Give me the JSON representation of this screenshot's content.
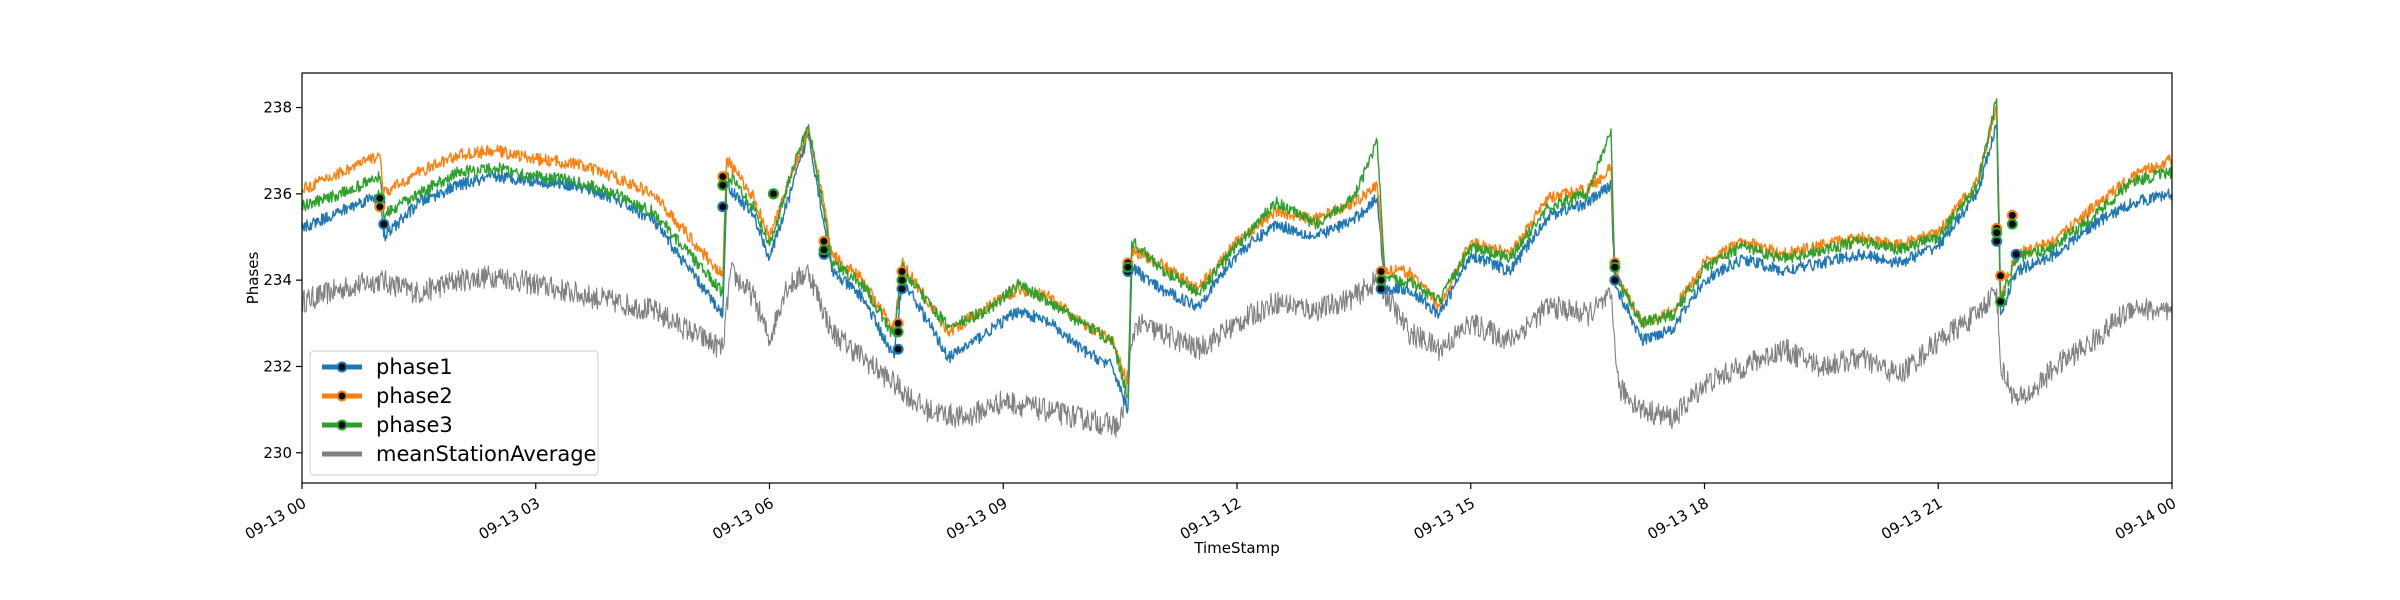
{
  "chart_data": {
    "type": "line",
    "title": "",
    "xlabel": "TimeStamp",
    "ylabel": "Phases",
    "xlim": [
      "09-13 00:00",
      "09-14 00:00"
    ],
    "ylim": [
      229.3,
      238.8
    ],
    "x_unit": "hour",
    "x_tick_values": [
      0,
      3,
      6,
      9,
      12,
      15,
      18,
      21,
      24
    ],
    "x_tick_labels": [
      "09-13 00",
      "09-13 03",
      "09-13 06",
      "09-13 09",
      "09-13 12",
      "09-13 15",
      "09-13 18",
      "09-13 21",
      "09-14 00"
    ],
    "y_ticks": [
      230,
      232,
      234,
      236,
      238
    ],
    "grid": false,
    "legend_position": "lower-left",
    "series": [
      {
        "name": "phase1",
        "color": "#1f77b4",
        "x": [
          0,
          0.5,
          1.0,
          1.05,
          1.5,
          2.0,
          2.5,
          3.0,
          3.5,
          4.0,
          4.5,
          5.4,
          5.45,
          5.8,
          6.0,
          6.3,
          6.5,
          6.7,
          6.8,
          7.2,
          7.6,
          7.7,
          7.85,
          8.3,
          8.8,
          9.2,
          9.6,
          10.0,
          10.4,
          10.6,
          10.65,
          11.0,
          11.5,
          12.0,
          12.5,
          13.0,
          13.5,
          13.8,
          13.9,
          14.2,
          14.6,
          15.0,
          15.5,
          16.0,
          16.5,
          16.8,
          16.85,
          17.2,
          17.6,
          18.0,
          18.5,
          19.0,
          19.5,
          20.0,
          20.5,
          21.0,
          21.5,
          21.75,
          21.8,
          22.0,
          22.5,
          23.0,
          23.5,
          24.0
        ],
        "y": [
          235.2,
          235.6,
          236.0,
          235.0,
          235.8,
          236.2,
          236.4,
          236.3,
          236.2,
          235.9,
          235.4,
          233.2,
          236.2,
          235.5,
          234.5,
          236.2,
          237.4,
          235.3,
          234.2,
          233.6,
          232.2,
          234.0,
          233.6,
          232.2,
          232.8,
          233.3,
          233.0,
          232.4,
          232.0,
          231.0,
          234.3,
          233.8,
          233.4,
          234.6,
          235.3,
          235.0,
          235.4,
          235.9,
          233.8,
          233.8,
          233.2,
          234.6,
          234.2,
          235.5,
          235.8,
          236.2,
          233.9,
          232.6,
          232.9,
          234.0,
          234.5,
          234.2,
          234.4,
          234.6,
          234.4,
          234.8,
          236.0,
          237.6,
          233.2,
          234.2,
          234.6,
          235.3,
          235.8,
          236.0
        ]
      },
      {
        "name": "phase2",
        "color": "#ff7f0e",
        "x": [
          0,
          0.5,
          1.0,
          1.05,
          1.5,
          2.0,
          2.5,
          3.0,
          3.5,
          4.0,
          4.5,
          5.4,
          5.45,
          5.8,
          6.0,
          6.3,
          6.5,
          6.7,
          6.8,
          7.2,
          7.6,
          7.7,
          7.85,
          8.3,
          8.8,
          9.2,
          9.6,
          10.0,
          10.4,
          10.6,
          10.65,
          11.0,
          11.5,
          12.0,
          12.5,
          13.0,
          13.5,
          13.8,
          13.9,
          14.2,
          14.6,
          15.0,
          15.5,
          16.0,
          16.5,
          16.8,
          16.85,
          17.2,
          17.6,
          18.0,
          18.5,
          19.0,
          19.5,
          20.0,
          20.5,
          21.0,
          21.5,
          21.75,
          21.8,
          22.0,
          22.5,
          23.0,
          23.5,
          24.0
        ],
        "y": [
          236.1,
          236.5,
          236.9,
          236.0,
          236.5,
          236.9,
          237.0,
          236.8,
          236.7,
          236.4,
          236.0,
          234.1,
          236.8,
          235.9,
          235.0,
          236.5,
          237.5,
          235.8,
          234.6,
          234.0,
          232.8,
          234.4,
          234.0,
          232.8,
          233.4,
          233.8,
          233.6,
          233.0,
          232.6,
          231.6,
          234.7,
          234.4,
          233.8,
          234.9,
          235.6,
          235.4,
          235.8,
          236.2,
          234.2,
          234.2,
          233.4,
          234.9,
          234.6,
          235.9,
          236.1,
          236.6,
          234.2,
          233.0,
          233.3,
          234.4,
          234.9,
          234.6,
          234.8,
          235.0,
          234.8,
          235.1,
          236.3,
          238.0,
          233.6,
          234.6,
          234.9,
          235.7,
          236.4,
          236.8
        ]
      },
      {
        "name": "phase3",
        "color": "#2ca02c",
        "x": [
          0,
          0.5,
          1.0,
          1.05,
          1.5,
          2.0,
          2.5,
          3.0,
          3.5,
          4.0,
          4.5,
          5.4,
          5.45,
          5.8,
          6.0,
          6.3,
          6.5,
          6.7,
          6.8,
          7.2,
          7.6,
          7.7,
          7.85,
          8.3,
          8.8,
          9.2,
          9.6,
          10.0,
          10.4,
          10.6,
          10.65,
          11.0,
          11.5,
          12.0,
          12.5,
          13.0,
          13.5,
          13.8,
          13.9,
          14.2,
          14.6,
          15.0,
          15.5,
          16.0,
          16.5,
          16.8,
          16.85,
          17.2,
          17.6,
          18.0,
          18.5,
          19.0,
          19.5,
          20.0,
          20.5,
          21.0,
          21.5,
          21.75,
          21.8,
          22.0,
          22.5,
          23.0,
          23.5,
          24.0
        ],
        "y": [
          235.7,
          236.0,
          236.4,
          235.5,
          236.0,
          236.5,
          236.6,
          236.4,
          236.3,
          236.0,
          235.6,
          233.7,
          236.5,
          235.7,
          234.8,
          236.6,
          237.6,
          235.6,
          234.4,
          233.9,
          232.7,
          234.3,
          233.9,
          232.9,
          233.3,
          233.9,
          233.5,
          233.0,
          232.6,
          231.3,
          234.9,
          234.3,
          233.7,
          234.8,
          235.8,
          235.3,
          235.9,
          237.2,
          234.0,
          234.0,
          233.5,
          234.8,
          234.5,
          235.7,
          236.0,
          237.5,
          234.1,
          233.0,
          233.2,
          234.3,
          234.8,
          234.5,
          234.7,
          234.9,
          234.7,
          235.0,
          236.2,
          238.2,
          233.5,
          234.5,
          234.8,
          235.5,
          236.3,
          236.5
        ]
      },
      {
        "name": "meanStationAverage",
        "color": "#808080",
        "x": [
          0,
          0.5,
          1.0,
          1.5,
          2.0,
          2.5,
          3.0,
          3.5,
          4.0,
          4.5,
          5.0,
          5.4,
          5.5,
          5.8,
          6.0,
          6.2,
          6.5,
          6.8,
          7.2,
          7.6,
          8.0,
          8.5,
          9.0,
          9.5,
          10.0,
          10.5,
          10.7,
          11.0,
          11.5,
          12.0,
          12.5,
          13.0,
          13.5,
          13.8,
          14.2,
          14.6,
          15.0,
          15.5,
          16.0,
          16.5,
          16.8,
          16.9,
          17.2,
          17.6,
          18.0,
          18.5,
          19.0,
          19.5,
          20.0,
          20.5,
          21.0,
          21.5,
          21.75,
          21.8,
          22.0,
          22.2,
          22.5,
          23.0,
          23.5,
          24.0
        ],
        "y": [
          233.5,
          233.8,
          234.0,
          233.7,
          234.0,
          234.1,
          233.9,
          233.7,
          233.5,
          233.3,
          232.8,
          232.4,
          234.2,
          233.6,
          232.6,
          233.8,
          234.2,
          232.8,
          232.2,
          231.6,
          231.0,
          230.8,
          231.2,
          231.0,
          230.8,
          230.6,
          233.0,
          232.8,
          232.4,
          233.0,
          233.5,
          233.3,
          233.6,
          234.0,
          232.8,
          232.4,
          233.0,
          232.6,
          233.4,
          233.2,
          233.6,
          231.5,
          231.0,
          230.8,
          231.6,
          232.0,
          232.4,
          232.0,
          232.2,
          231.8,
          232.6,
          233.2,
          233.8,
          232.0,
          231.2,
          231.4,
          232.0,
          232.6,
          233.4,
          233.2
        ]
      }
    ],
    "markers": [
      {
        "series": "phase1",
        "x": [
          1.0,
          1.05,
          5.4,
          6.05,
          6.7,
          7.65,
          7.7,
          10.6,
          13.85,
          16.85,
          21.75,
          22.0
        ],
        "y": [
          235.8,
          235.3,
          235.7,
          236.0,
          234.6,
          232.4,
          233.8,
          234.2,
          233.8,
          234.0,
          234.9,
          234.6
        ]
      },
      {
        "series": "phase2",
        "x": [
          1.0,
          5.4,
          6.05,
          6.7,
          7.65,
          7.7,
          10.6,
          13.85,
          16.85,
          21.75,
          21.8,
          21.95
        ],
        "y": [
          235.7,
          236.4,
          236.0,
          234.9,
          233.0,
          234.2,
          234.4,
          234.2,
          234.4,
          235.2,
          234.1,
          235.5
        ]
      },
      {
        "series": "phase3",
        "x": [
          1.0,
          5.4,
          6.05,
          6.7,
          7.65,
          7.7,
          10.6,
          13.85,
          16.85,
          21.75,
          21.8,
          21.95
        ],
        "y": [
          235.9,
          236.2,
          236.0,
          234.7,
          232.8,
          234.0,
          234.3,
          234.0,
          234.3,
          235.1,
          233.5,
          235.3
        ]
      }
    ]
  }
}
